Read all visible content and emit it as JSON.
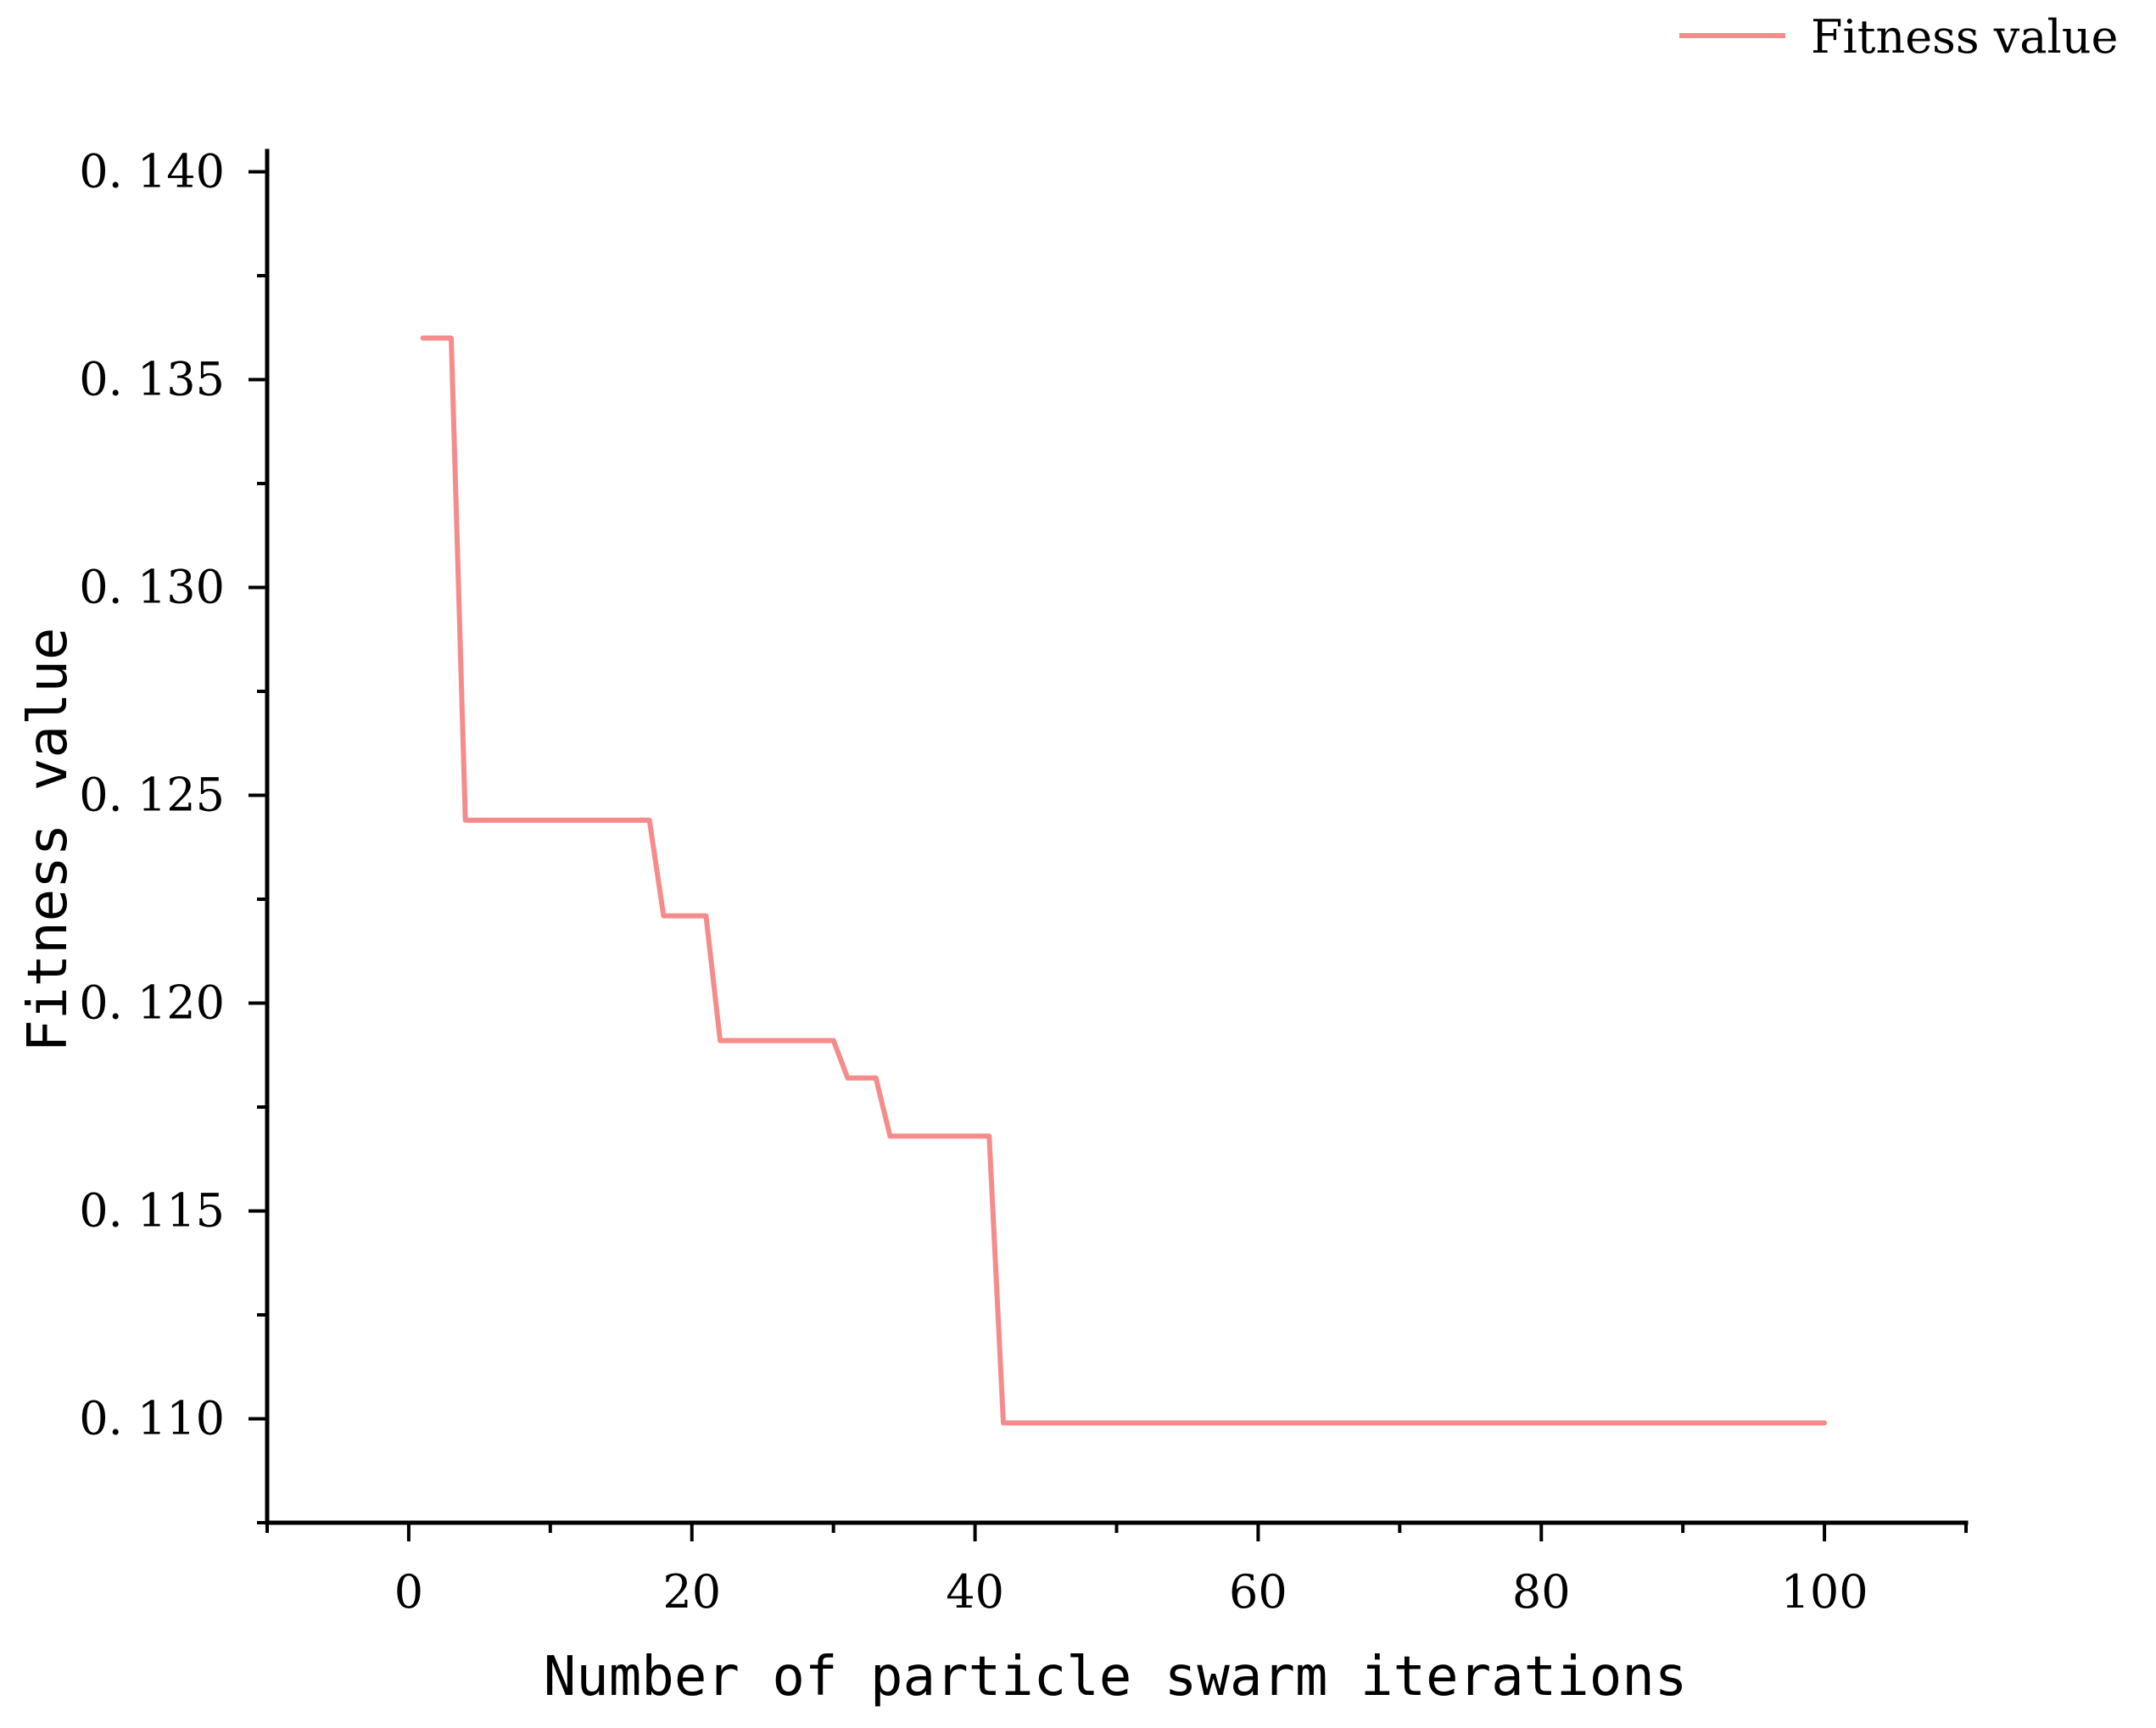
{
  "chart_data": {
    "type": "line",
    "title": "",
    "xlabel": "Number of particle swarm iterations",
    "ylabel": "Fitness value",
    "xlim": [
      -10,
      110
    ],
    "ylim": [
      0.1075,
      0.1405
    ],
    "x_ticks": [
      0,
      20,
      40,
      60,
      80,
      100
    ],
    "x_tick_labels": [
      "0",
      "20",
      "40",
      "60",
      "80",
      "100"
    ],
    "x_minor_step": 10,
    "y_ticks": [
      0.11,
      0.115,
      0.12,
      0.125,
      0.13,
      0.135,
      0.14
    ],
    "y_tick_labels": [
      "0. 110",
      "0. 115",
      "0. 120",
      "0. 125",
      "0. 130",
      "0. 135",
      "0. 140"
    ],
    "y_minor_step": 0.0025,
    "grid": false,
    "legend": {
      "position": "top-right",
      "entries": [
        "Fitness value"
      ]
    },
    "series": [
      {
        "name": "Fitness value",
        "color": "#f58b8b",
        "x": [
          1,
          3,
          4,
          17,
          18,
          21,
          22,
          30,
          31,
          33,
          34,
          41,
          42,
          100
        ],
        "y": [
          0.136,
          0.136,
          0.1244,
          0.1244,
          0.1221,
          0.1221,
          0.1191,
          0.1191,
          0.1182,
          0.1182,
          0.1168,
          0.1168,
          0.1099,
          0.1099
        ]
      }
    ]
  }
}
